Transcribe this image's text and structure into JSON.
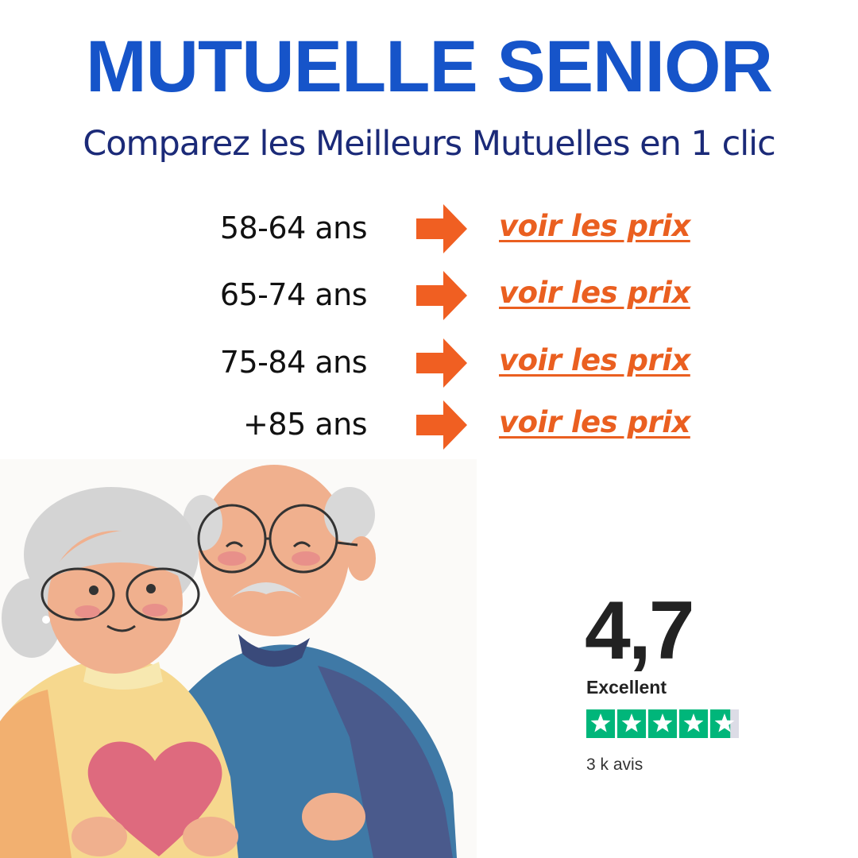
{
  "header": {
    "title": "MUTUELLE SENIOR",
    "subtitle": "Comparez les Meilleurs Mutuelles en 1 clic"
  },
  "rows": [
    {
      "age": "58-64 ans",
      "link": "voir les prix"
    },
    {
      "age": "65-74 ans",
      "link": "voir les prix"
    },
    {
      "age": "75-84 ans",
      "link": "voir les prix"
    },
    {
      "age": "+85 ans",
      "link": "voir les prix"
    }
  ],
  "rating": {
    "score": {
      "value": 4.7,
      "label": "4,7"
    },
    "verdict": "Excellent",
    "count": "3 k avis"
  }
}
